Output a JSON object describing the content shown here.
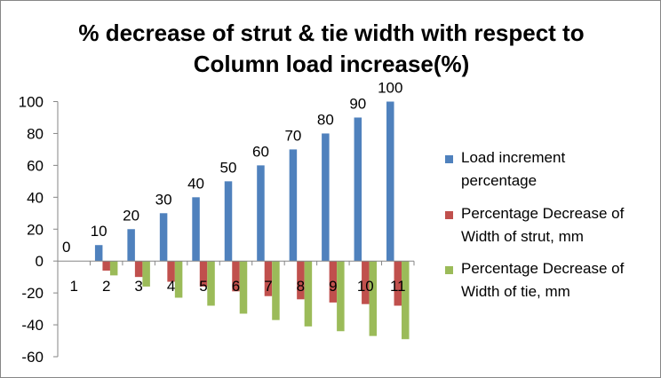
{
  "chart_data": {
    "type": "bar",
    "title_lines": [
      "% decrease of strut & tie width with respect to",
      "Column load increase(%)"
    ],
    "xlabel": "",
    "ylabel": "",
    "categories": [
      "1",
      "2",
      "3",
      "4",
      "5",
      "6",
      "7",
      "8",
      "9",
      "10",
      "11"
    ],
    "ylim": [
      -60,
      100
    ],
    "yticks": [
      -60,
      -40,
      -20,
      0,
      20,
      40,
      60,
      80,
      100
    ],
    "grid": false,
    "legend_position": "right",
    "series": [
      {
        "name_lines": [
          "Load increment",
          "percentage"
        ],
        "color": "#4f81bd",
        "values": [
          0,
          10,
          20,
          30,
          40,
          50,
          60,
          70,
          80,
          90,
          100
        ],
        "data_labels": [
          "0",
          "10",
          "20",
          "30",
          "40",
          "50",
          "60",
          "70",
          "80",
          "90",
          "100"
        ]
      },
      {
        "name_lines": [
          "Percentage Decrease of",
          "Width of strut, mm"
        ],
        "color": "#c0504d",
        "values": [
          0,
          -6,
          -10,
          -13,
          -16,
          -19,
          -22,
          -24,
          -26,
          -27,
          -28
        ]
      },
      {
        "name_lines": [
          "Percentage Decrease of",
          "Width of tie, mm"
        ],
        "color": "#9bbb59",
        "values": [
          0,
          -9,
          -16,
          -23,
          -28,
          -33,
          -37,
          -41,
          -44,
          -47,
          -49
        ]
      }
    ]
  }
}
